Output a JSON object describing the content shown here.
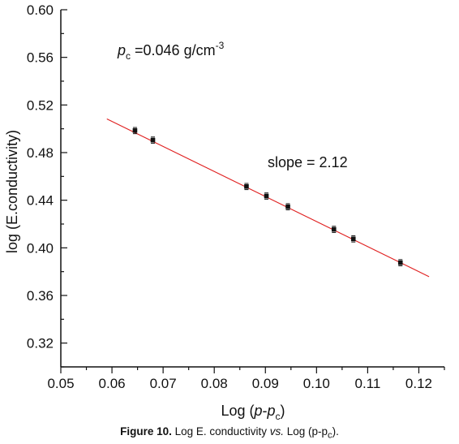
{
  "chart_data": {
    "type": "scatter",
    "x": [
      0.0645,
      0.068,
      0.0863,
      0.0902,
      0.0944,
      0.1034,
      0.1072,
      0.1164
    ],
    "y": [
      0.4985,
      0.4905,
      0.4515,
      0.4435,
      0.4345,
      0.4155,
      0.4075,
      0.3875
    ],
    "fit_line": {
      "x": [
        0.059,
        0.122
      ],
      "y": [
        0.5083,
        0.3758
      ],
      "color": "#e02020"
    },
    "marker_color": "#111111",
    "xlim": [
      0.05,
      0.125
    ],
    "ylim": [
      0.3,
      0.6
    ],
    "xticks": [
      "0.05",
      "0.06",
      "0.07",
      "0.08",
      "0.09",
      "0.10",
      "0.11",
      "0.12"
    ],
    "yticks": [
      "0.32",
      "0.36",
      "0.40",
      "0.44",
      "0.48",
      "0.52",
      "0.56",
      "0.60"
    ],
    "xlabel": {
      "prefix": "Log (",
      "var1": "p",
      "dash": "-",
      "var2": "p",
      "sub": "c",
      "suffix": ")"
    },
    "ylabel": "log (E.conductivity)",
    "grid": false,
    "annotations": {
      "pc": {
        "var": "p",
        "sub": "c",
        "text": " =0.046 g/cm",
        "sup": "-3"
      },
      "slope": "slope = 2.12"
    }
  },
  "caption": {
    "bold": "Figure 10.",
    "text1": " Log E. conductivity ",
    "vs": "vs.",
    "text2": " Log (p-p",
    "sub": "c",
    "text3": ")."
  }
}
